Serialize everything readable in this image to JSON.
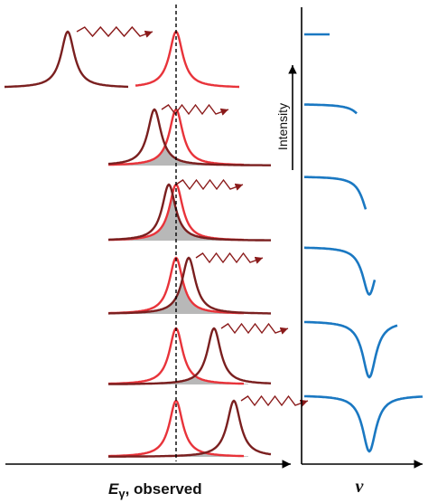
{
  "labels": {
    "x_left_symbol": "E",
    "x_left_subscript": "γ",
    "x_left_rest": ", observed",
    "x_right": "ν",
    "intensity": "Intensity"
  },
  "colors": {
    "source_line": "#7a1f1f",
    "absorber_line": "#e8333a",
    "overlap_fill": "#a0a0a0",
    "spectrum": "#1a78c2",
    "gamma_arrow": "#8a1a1a",
    "axis": "#000000"
  },
  "rows": [
    {
      "source_shift": -120,
      "spectrum_extent": 0.3
    },
    {
      "source_shift": -24,
      "spectrum_extent": 0.5
    },
    {
      "source_shift": -8,
      "spectrum_extent": 0.65
    },
    {
      "source_shift": 14,
      "spectrum_extent": 0.82
    },
    {
      "source_shift": 42,
      "spectrum_extent": 1.0
    },
    {
      "source_shift": 64,
      "spectrum_extent": 1.3
    }
  ]
}
